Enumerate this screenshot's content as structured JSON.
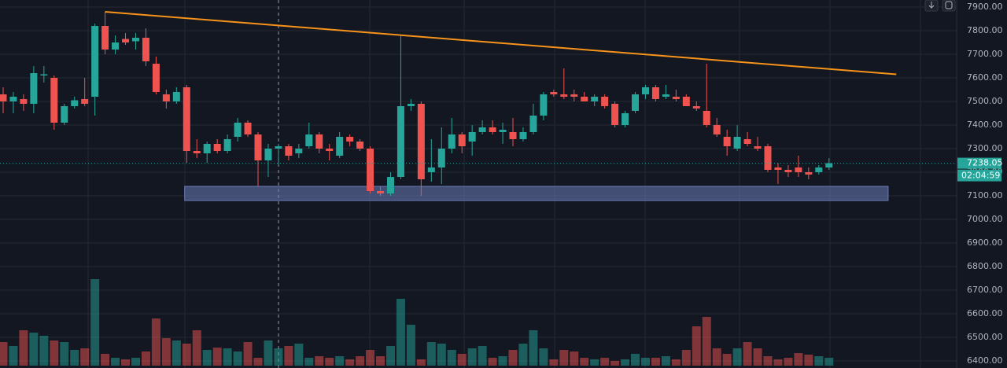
{
  "chart_data": {
    "type": "candlestick",
    "open": [
      7530,
      7500,
      7510,
      7490,
      7610,
      7600,
      7410,
      7480,
      7510,
      7520,
      7820,
      7720,
      7765,
      7755,
      7770,
      7660,
      7530,
      7500,
      7560,
      7290,
      7280,
      7320,
      7290,
      7350,
      7410,
      7360,
      7250,
      7300,
      7310,
      7280,
      7310,
      7360,
      7300,
      7270,
      7350,
      7330,
      7300,
      7120,
      7110,
      7180,
      7480,
      7490,
      7200,
      7220,
      7300,
      7360,
      7330,
      7370,
      7390,
      7370,
      7370,
      7340,
      7370,
      7440,
      7540,
      7530,
      7530,
      7520,
      7500,
      7520,
      7490,
      7400,
      7460,
      7530,
      7560,
      7520,
      7520,
      7520,
      7480,
      7460,
      7400,
      7350,
      7300,
      7340,
      7310,
      7310,
      7220,
      7210,
      7220,
      7200,
      7200,
      7220
    ],
    "high": [
      7560,
      7540,
      7530,
      7650,
      7650,
      7610,
      7490,
      7520,
      7600,
      7830,
      7880,
      7780,
      7790,
      7790,
      7810,
      7690,
      7550,
      7560,
      7570,
      7340,
      7330,
      7340,
      7360,
      7430,
      7420,
      7370,
      7320,
      7320,
      7320,
      7320,
      7410,
      7370,
      7320,
      7370,
      7360,
      7340,
      7310,
      7140,
      7200,
      7780,
      7510,
      7500,
      7340,
      7390,
      7430,
      7370,
      7400,
      7420,
      7420,
      7410,
      7430,
      7390,
      7490,
      7540,
      7550,
      7640,
      7550,
      7540,
      7530,
      7530,
      7500,
      7460,
      7540,
      7570,
      7570,
      7570,
      7550,
      7530,
      7500,
      7660,
      7430,
      7380,
      7400,
      7370,
      7350,
      7320,
      7240,
      7230,
      7270,
      7220,
      7230,
      7260
    ],
    "low": [
      7450,
      7450,
      7460,
      7450,
      7580,
      7380,
      7400,
      7470,
      7480,
      7440,
      7700,
      7700,
      7740,
      7720,
      7650,
      7530,
      7470,
      7490,
      7240,
      7260,
      7240,
      7280,
      7280,
      7330,
      7350,
      7140,
      7180,
      7230,
      7250,
      7260,
      7300,
      7280,
      7250,
      7260,
      7310,
      7290,
      7110,
      7100,
      7100,
      7170,
      7460,
      7100,
      7160,
      7150,
      7280,
      7280,
      7270,
      7360,
      7360,
      7320,
      7310,
      7330,
      7360,
      7420,
      7520,
      7510,
      7500,
      7500,
      7480,
      7470,
      7390,
      7390,
      7450,
      7510,
      7500,
      7510,
      7500,
      7480,
      7460,
      7390,
      7350,
      7270,
      7290,
      7310,
      7290,
      7200,
      7150,
      7180,
      7180,
      7170,
      7190,
      7210
    ],
    "close": [
      7500,
      7520,
      7490,
      7620,
      7615,
      7410,
      7480,
      7505,
      7490,
      7820,
      7720,
      7750,
      7750,
      7770,
      7670,
      7540,
      7500,
      7540,
      7290,
      7280,
      7320,
      7290,
      7340,
      7410,
      7360,
      7250,
      7300,
      7310,
      7270,
      7300,
      7360,
      7300,
      7290,
      7350,
      7330,
      7300,
      7120,
      7110,
      7180,
      7480,
      7490,
      7170,
      7220,
      7300,
      7360,
      7310,
      7370,
      7390,
      7370,
      7380,
      7340,
      7370,
      7440,
      7530,
      7530,
      7520,
      7520,
      7500,
      7520,
      7480,
      7400,
      7450,
      7530,
      7560,
      7510,
      7530,
      7510,
      7480,
      7470,
      7400,
      7360,
      7310,
      7350,
      7320,
      7300,
      7210,
      7210,
      7200,
      7200,
      7190,
      7220,
      7238.05
    ],
    "volume": [
      30,
      25,
      45,
      42,
      38,
      32,
      30,
      20,
      22,
      110,
      15,
      10,
      8,
      10,
      18,
      60,
      35,
      32,
      28,
      45,
      20,
      23,
      22,
      18,
      30,
      10,
      32,
      22,
      25,
      28,
      10,
      12,
      10,
      12,
      8,
      12,
      20,
      12,
      25,
      85,
      52,
      8,
      30,
      28,
      20,
      15,
      22,
      25,
      10,
      12,
      20,
      28,
      45,
      22,
      8,
      20,
      18,
      10,
      8,
      10,
      6,
      8,
      15,
      10,
      10,
      12,
      8,
      20,
      50,
      62,
      22,
      15,
      22,
      30,
      22,
      12,
      8,
      10,
      16,
      14,
      12,
      10
    ],
    "up_color": "#26a69a",
    "down_color": "#ef5350",
    "ylim": [
      6370,
      7930
    ],
    "yticks": [
      {
        "value": 7900,
        "label": "7900.00"
      },
      {
        "value": 7800,
        "label": "7800.00"
      },
      {
        "value": 7700,
        "label": "7700.00"
      },
      {
        "value": 7600,
        "label": "7600.00"
      },
      {
        "value": 7500,
        "label": "7500.00"
      },
      {
        "value": 7400,
        "label": "7400.00"
      },
      {
        "value": 7300,
        "label": "7300.00"
      },
      {
        "value": 7200,
        "label": "7200.00"
      },
      {
        "value": 7100,
        "label": "7100.00"
      },
      {
        "value": 7000,
        "label": "7000.00"
      },
      {
        "value": 6900,
        "label": "6900.00"
      },
      {
        "value": 6800,
        "label": "6800.00"
      },
      {
        "value": 6700,
        "label": "6700.00"
      },
      {
        "value": 6600,
        "label": "6600.00"
      },
      {
        "value": 6500,
        "label": "6500.00"
      },
      {
        "value": 6400,
        "label": "6400.00"
      }
    ],
    "grid": true,
    "countdown": "02:04:59",
    "trendline": {
      "x": [
        10,
        87.6
      ],
      "y": [
        7880,
        7615
      ],
      "color": "#f7931a"
    },
    "support_zone": {
      "x": [
        17.8,
        86.8
      ],
      "y": [
        7140,
        7080
      ],
      "color": "#6b7bb8"
    }
  }
}
